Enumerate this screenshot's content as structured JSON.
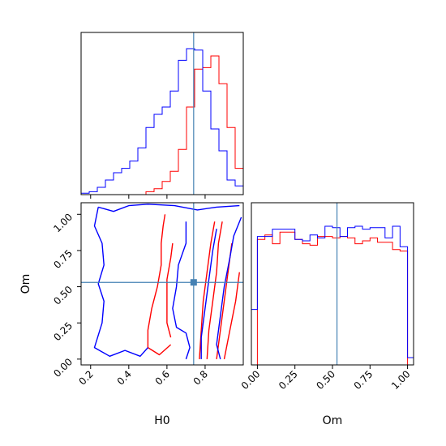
{
  "chart_data": {
    "type": "corner",
    "parameters": [
      "H0",
      "Om"
    ],
    "truth": {
      "H0": 0.74,
      "Om": 0.53
    },
    "colors": {
      "red": "#ff0000",
      "blue": "#0000ff",
      "truth": "#4682b4"
    },
    "hist_H0": {
      "xlim": [
        0.15,
        1.0
      ],
      "ticks": [
        "0.2",
        "0.4",
        "0.6",
        "0.8"
      ],
      "bin_edges": [
        0.15,
        0.1925,
        0.235,
        0.2775,
        0.32,
        0.3625,
        0.405,
        0.4475,
        0.49,
        0.5325,
        0.575,
        0.6175,
        0.66,
        0.7025,
        0.745,
        0.7875,
        0.83,
        0.8725,
        0.915,
        0.9575,
        1.0
      ],
      "series": [
        {
          "color": "red",
          "values": [
            0,
            0,
            0,
            0,
            0,
            0,
            0,
            0,
            2,
            4,
            9,
            16,
            31,
            60,
            86,
            87,
            95,
            76,
            46,
            18
          ]
        },
        {
          "color": "blue",
          "values": [
            1,
            2,
            5,
            10,
            15,
            18,
            23,
            32,
            46,
            55,
            60,
            71,
            92,
            100,
            99,
            71,
            45,
            30,
            10,
            6
          ]
        }
      ]
    },
    "hist_Om": {
      "xlim": [
        -0.04,
        1.04
      ],
      "ticks": [
        "0.00",
        "0.25",
        "0.50",
        "0.75",
        "1.00"
      ],
      "bin_edges": [
        -0.04,
        0.0,
        0.05,
        0.1,
        0.15,
        0.2,
        0.25,
        0.3,
        0.35,
        0.4,
        0.45,
        0.5,
        0.55,
        0.6,
        0.65,
        0.7,
        0.75,
        0.8,
        0.85,
        0.9,
        0.95,
        1.0,
        1.04
      ],
      "series": [
        {
          "color": "red",
          "values": [
            0,
            86,
            89,
            83,
            91,
            91,
            86,
            83,
            82,
            88,
            88,
            87,
            88,
            87,
            83,
            85,
            87,
            84,
            84,
            79,
            78,
            0
          ]
        },
        {
          "color": "blue",
          "values": [
            38,
            88,
            88,
            93,
            93,
            93,
            86,
            85,
            89,
            87,
            95,
            94,
            88,
            94,
            95,
            93,
            94,
            94,
            87,
            95,
            81,
            5
          ]
        }
      ]
    },
    "scatter": {
      "xlabel": "H0",
      "ylabel": "Om",
      "xlim": [
        0.15,
        1.0
      ],
      "ylim": [
        -0.04,
        1.08
      ],
      "xticks": [
        "0.2",
        "0.4",
        "0.6",
        "0.8"
      ],
      "yticks": [
        "0.00",
        "0.25",
        "0.50",
        "0.75",
        "1.00"
      ],
      "contours": [
        {
          "color": "red",
          "points": [
            [
              0.59,
              1.0
            ],
            [
              0.58,
              0.92
            ],
            [
              0.57,
              0.8
            ],
            [
              0.57,
              0.65
            ],
            [
              0.55,
              0.5
            ],
            [
              0.52,
              0.35
            ],
            [
              0.5,
              0.2
            ],
            [
              0.5,
              0.08
            ],
            [
              0.56,
              0.03
            ],
            [
              0.62,
              0.1
            ]
          ]
        },
        {
          "color": "red",
          "points": [
            [
              0.63,
              0.8
            ],
            [
              0.62,
              0.7
            ],
            [
              0.6,
              0.55
            ],
            [
              0.6,
              0.4
            ],
            [
              0.6,
              0.25
            ],
            [
              0.62,
              0.15
            ]
          ]
        },
        {
          "color": "red",
          "points": [
            [
              0.85,
              0.95
            ],
            [
              0.83,
              0.8
            ],
            [
              0.81,
              0.6
            ],
            [
              0.79,
              0.4
            ],
            [
              0.78,
              0.2
            ],
            [
              0.77,
              0.0
            ]
          ]
        },
        {
          "color": "red",
          "points": [
            [
              0.89,
              0.95
            ],
            [
              0.87,
              0.8
            ],
            [
              0.86,
              0.6
            ],
            [
              0.84,
              0.4
            ],
            [
              0.82,
              0.2
            ],
            [
              0.81,
              0.0
            ]
          ]
        },
        {
          "color": "red",
          "points": [
            [
              0.94,
              0.8
            ],
            [
              0.92,
              0.6
            ],
            [
              0.9,
              0.4
            ],
            [
              0.88,
              0.2
            ],
            [
              0.86,
              0.0
            ]
          ]
        },
        {
          "color": "red",
          "points": [
            [
              0.98,
              0.6
            ],
            [
              0.96,
              0.4
            ],
            [
              0.93,
              0.2
            ],
            [
              0.9,
              0.0
            ]
          ]
        },
        {
          "color": "blue",
          "points": [
            [
              0.24,
              1.05
            ],
            [
              0.32,
              1.02
            ],
            [
              0.4,
              1.06
            ],
            [
              0.5,
              1.07
            ],
            [
              0.64,
              1.06
            ],
            [
              0.76,
              1.03
            ],
            [
              0.86,
              1.05
            ],
            [
              0.98,
              1.06
            ]
          ]
        },
        {
          "color": "blue",
          "points": [
            [
              0.24,
              1.05
            ],
            [
              0.22,
              0.92
            ],
            [
              0.26,
              0.8
            ],
            [
              0.27,
              0.65
            ],
            [
              0.24,
              0.52
            ],
            [
              0.27,
              0.4
            ],
            [
              0.26,
              0.25
            ],
            [
              0.22,
              0.08
            ],
            [
              0.3,
              0.02
            ],
            [
              0.38,
              0.06
            ],
            [
              0.46,
              0.02
            ],
            [
              0.5,
              0.08
            ]
          ]
        },
        {
          "color": "blue",
          "points": [
            [
              0.7,
              0.95
            ],
            [
              0.7,
              0.8
            ],
            [
              0.66,
              0.65
            ],
            [
              0.65,
              0.5
            ],
            [
              0.63,
              0.35
            ],
            [
              0.65,
              0.22
            ],
            [
              0.7,
              0.18
            ],
            [
              0.72,
              0.08
            ],
            [
              0.7,
              0.0
            ]
          ]
        },
        {
          "color": "blue",
          "points": [
            [
              0.86,
              0.9
            ],
            [
              0.84,
              0.75
            ],
            [
              0.82,
              0.55
            ],
            [
              0.8,
              0.35
            ],
            [
              0.78,
              0.15
            ],
            [
              0.78,
              0.0
            ]
          ]
        },
        {
          "color": "blue",
          "points": [
            [
              0.99,
              0.98
            ],
            [
              0.95,
              0.85
            ],
            [
              0.93,
              0.7
            ],
            [
              0.9,
              0.5
            ],
            [
              0.88,
              0.3
            ],
            [
              0.86,
              0.1
            ],
            [
              0.88,
              0.0
            ]
          ]
        }
      ]
    }
  }
}
